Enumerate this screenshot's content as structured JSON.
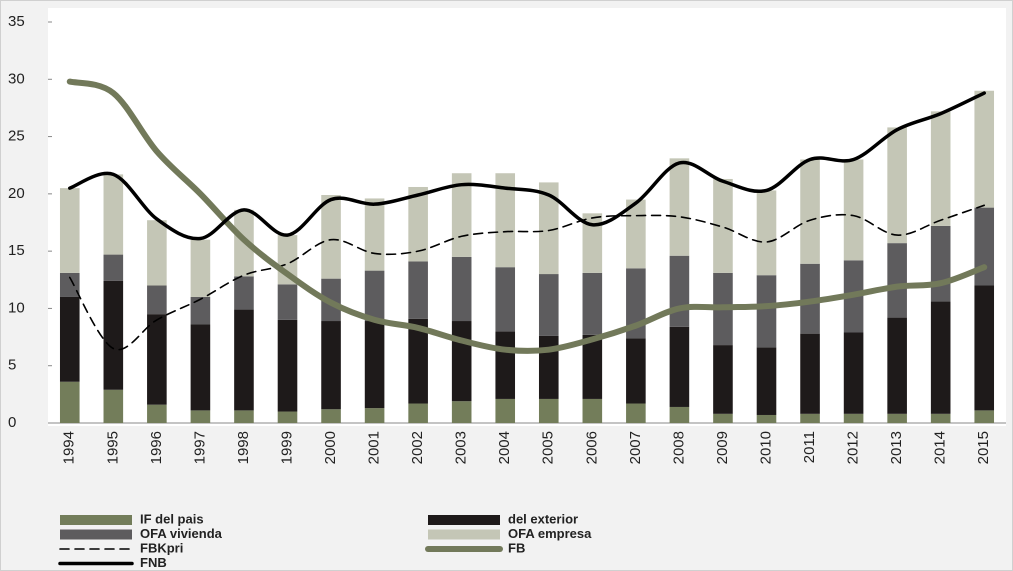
{
  "chart_data": {
    "type": "bar",
    "categories": [
      "1994",
      "1995",
      "1996",
      "1997",
      "1998",
      "1999",
      "2000",
      "2001",
      "2002",
      "2003",
      "2004",
      "2005",
      "2006",
      "2007",
      "2008",
      "2009",
      "2010",
      "2011",
      "2012",
      "2013",
      "2014",
      "2015"
    ],
    "ylim": [
      0,
      35
    ],
    "yticks": [
      0,
      5,
      10,
      15,
      20,
      25,
      30,
      35
    ],
    "stacked": true,
    "series": [
      {
        "name": "IF del pais",
        "type": "bar",
        "color": "#737d5a",
        "values": [
          3.6,
          2.9,
          1.6,
          1.1,
          1.1,
          1.0,
          1.2,
          1.3,
          1.7,
          1.9,
          2.1,
          2.1,
          2.1,
          1.7,
          1.4,
          0.8,
          0.7,
          0.8,
          0.8,
          0.8,
          0.8,
          1.1
        ]
      },
      {
        "name": "del exterior",
        "type": "bar",
        "color": "#1e1a1a",
        "values": [
          7.4,
          9.5,
          7.9,
          7.5,
          8.8,
          8.0,
          7.7,
          7.6,
          7.4,
          7.0,
          5.9,
          5.5,
          5.6,
          5.7,
          7.0,
          6.0,
          5.9,
          7.0,
          7.1,
          8.4,
          9.8,
          10.9
        ]
      },
      {
        "name": "OFA vivienda",
        "type": "bar",
        "color": "#5d5c5e",
        "values": [
          2.1,
          2.3,
          2.5,
          2.4,
          2.9,
          3.1,
          3.7,
          4.4,
          5.0,
          5.6,
          5.6,
          5.4,
          5.4,
          6.1,
          6.2,
          6.3,
          6.3,
          6.1,
          6.3,
          6.5,
          6.6,
          6.8
        ]
      },
      {
        "name": "OFA empresa",
        "type": "bar",
        "color": "#c4c6b6",
        "values": [
          7.4,
          7.0,
          5.7,
          5.0,
          5.8,
          4.3,
          7.3,
          6.3,
          6.5,
          7.3,
          8.2,
          8.0,
          5.2,
          6.0,
          8.5,
          8.2,
          7.4,
          9.1,
          8.8,
          10.1,
          10.0,
          10.2
        ]
      },
      {
        "name": "FBKpri",
        "type": "line",
        "style": "dashed",
        "color": "#000000",
        "values": [
          12.7,
          6.5,
          9.0,
          10.8,
          12.9,
          13.9,
          16.0,
          14.8,
          15.0,
          16.3,
          16.7,
          16.8,
          17.9,
          18.1,
          18.0,
          17.1,
          15.8,
          17.7,
          18.1,
          16.4,
          17.7,
          19.0
        ]
      },
      {
        "name": "FB",
        "type": "line",
        "style": "solid",
        "color": "#72795a",
        "values": [
          29.8,
          28.8,
          23.7,
          20.0,
          16.0,
          13.0,
          10.5,
          9.0,
          8.3,
          7.2,
          6.4,
          6.4,
          7.3,
          8.5,
          10.0,
          10.1,
          10.2,
          10.6,
          11.2,
          11.9,
          12.2,
          13.6
        ]
      },
      {
        "name": "FNB",
        "type": "line",
        "style": "solid",
        "color": "#000000",
        "values": [
          20.5,
          21.7,
          17.8,
          16.1,
          18.6,
          16.4,
          19.5,
          19.1,
          19.9,
          20.8,
          20.5,
          19.9,
          17.3,
          19.2,
          22.7,
          21.1,
          20.3,
          23.0,
          23.0,
          25.6,
          27.0,
          28.8
        ]
      }
    ]
  }
}
